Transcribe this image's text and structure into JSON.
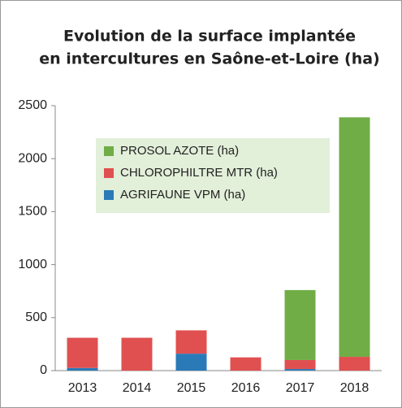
{
  "chart_data": {
    "type": "stacked_bar",
    "title": [
      "Evolution de la surface implantée",
      "en intercultures  en Saône-et-Loire (ha)"
    ],
    "categories": [
      "2013",
      "2014",
      "2015",
      "2016",
      "2017",
      "2018"
    ],
    "series": [
      {
        "name": "AGRIFAUNE VPM (ha)",
        "color": "#2a7ab8",
        "values": [
          25,
          0,
          160,
          0,
          15,
          0
        ]
      },
      {
        "name": "CHLOROPHILTRE MTR (ha)",
        "color": "#e05050",
        "values": [
          285,
          310,
          220,
          125,
          85,
          130
        ]
      },
      {
        "name": "PROSOL AZOTE (ha)",
        "color": "#70ad47",
        "values": [
          0,
          0,
          0,
          0,
          660,
          2260
        ]
      }
    ],
    "ylim": [
      0,
      2500
    ],
    "yticks": [
      0,
      500,
      1000,
      1500,
      2000,
      2500
    ],
    "grid": false
  }
}
